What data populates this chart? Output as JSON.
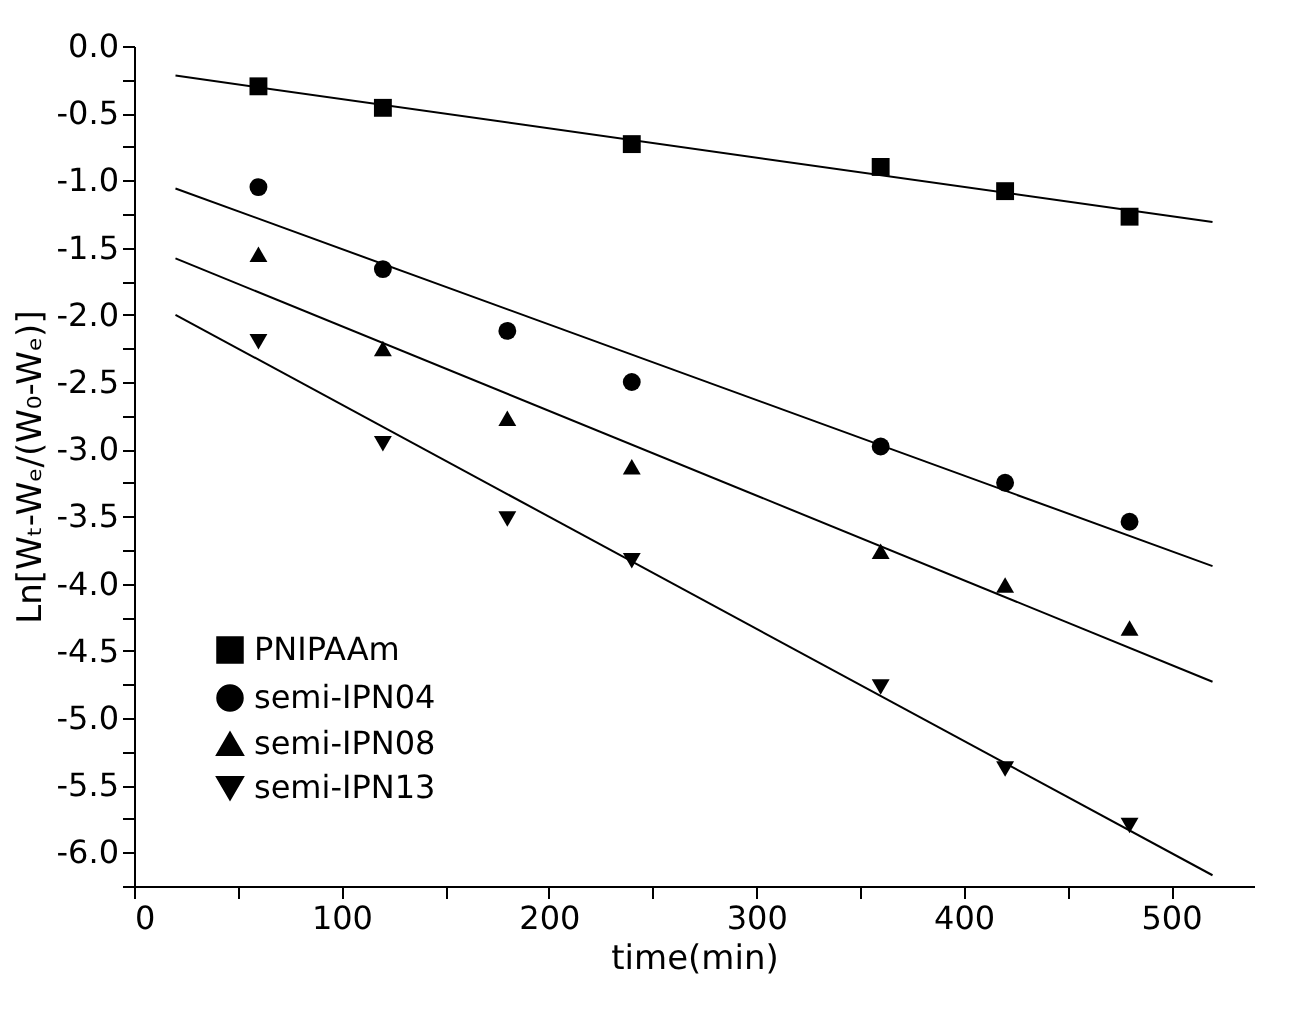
{
  "chart_data": {
    "type": "scatter",
    "xlabel": "time(min)",
    "ylabel": "Ln[Wₜ-Wₑ/(W₀-Wₑ)]",
    "xlim": [
      0,
      540
    ],
    "ylim": [
      -6.25,
      0
    ],
    "xticks": [
      0,
      {
        "value": 50,
        "label": null
      },
      100,
      {
        "value": 150,
        "label": null
      },
      200,
      {
        "value": 250,
        "label": null
      },
      300,
      {
        "value": 350,
        "label": null
      },
      400,
      {
        "value": 450,
        "label": null
      },
      500
    ],
    "yticks": [
      {
        "value": -6.25,
        "label": null
      },
      {
        "value": -6,
        "label": "-6.0"
      },
      {
        "value": -5.75,
        "label": null
      },
      -5.5,
      {
        "value": -5.25,
        "label": null
      },
      {
        "value": -5,
        "label": "-5.0"
      },
      {
        "value": -4.75,
        "label": null
      },
      -4.5,
      {
        "value": -4.25,
        "label": null
      },
      {
        "value": -4,
        "label": "-4.0"
      },
      {
        "value": -3.75,
        "label": null
      },
      -3.5,
      {
        "value": -3.25,
        "label": null
      },
      {
        "value": -3,
        "label": "-3.0"
      },
      {
        "value": -2.75,
        "label": null
      },
      -2.5,
      {
        "value": -2.25,
        "label": null
      },
      {
        "value": -2,
        "label": "-2.0"
      },
      {
        "value": -1.75,
        "label": null
      },
      -1.5,
      {
        "value": -1.25,
        "label": null
      },
      {
        "value": -1,
        "label": "-1.0"
      },
      {
        "value": -0.75,
        "label": null
      },
      -0.5,
      {
        "value": -0.25,
        "label": null
      },
      {
        "value": 0,
        "label": "0.0"
      }
    ],
    "grid": false,
    "legend": "bottom left",
    "series": [
      {
        "name": "PNIPAAm",
        "color": "#000000",
        "marker": "square",
        "x": [
          60,
          120,
          240,
          360,
          420,
          480
        ],
        "values": [
          -0.3,
          -0.46,
          -0.73,
          -0.9,
          -1.08,
          -1.27
        ]
      },
      {
        "name": "semi-IPN04",
        "color": "#000000",
        "marker": "circle",
        "x": [
          60,
          120,
          180,
          240,
          360,
          420,
          480
        ],
        "values": [
          -1.05,
          -1.66,
          -2.12,
          -2.5,
          -2.98,
          -3.25,
          -3.54
        ]
      },
      {
        "name": "semi-IPN08",
        "color": "#000000",
        "marker": "triangle",
        "x": [
          60,
          120,
          180,
          240,
          360,
          420,
          480
        ],
        "values": [
          -1.55,
          -2.25,
          -2.77,
          -3.13,
          -3.76,
          -4.01,
          -4.33
        ]
      },
      {
        "name": "semi-IPN13",
        "color": "#000000",
        "marker": "triangle-down",
        "x": [
          60,
          120,
          180,
          240,
          360,
          420,
          480
        ],
        "values": [
          -2.2,
          -2.96,
          -3.52,
          -3.83,
          -4.77,
          -5.38,
          -5.8
        ]
      },
      {
        "type": "line",
        "color": "#000000",
        "line_style": "solid",
        "x": [
          20,
          520
        ],
        "values": [
          -0.22,
          -1.31
        ]
      },
      {
        "type": "line",
        "color": "#000000",
        "line_style": "solid",
        "x": [
          20,
          520
        ],
        "values": [
          -1.06,
          -3.87
        ]
      },
      {
        "type": "line",
        "color": "#000000",
        "line_style": "solid",
        "x": [
          20,
          520
        ],
        "values": [
          -1.58,
          -4.73
        ]
      },
      {
        "type": "line",
        "color": "#000000",
        "line_style": "solid",
        "x": [
          20,
          520
        ],
        "values": [
          -2.0,
          -6.17
        ]
      }
    ]
  }
}
